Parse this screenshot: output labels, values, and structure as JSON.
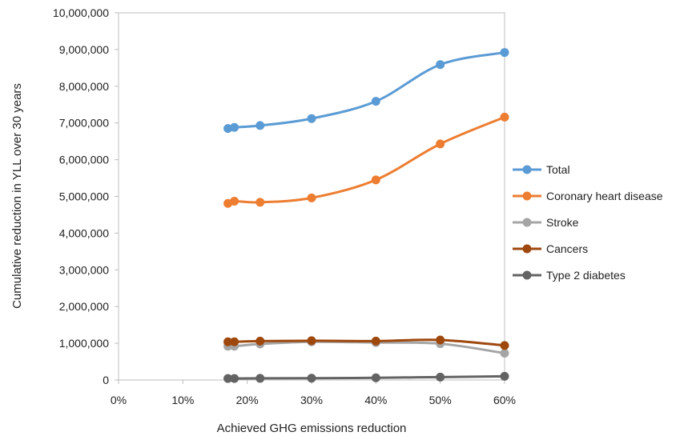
{
  "chart_data": {
    "type": "line",
    "title": "",
    "xlabel": "Achieved GHG emissions reduction",
    "ylabel": "Cumulative reduction in YLL over 30 years",
    "x_ticks": [
      "0%",
      "10%",
      "20%",
      "30%",
      "40%",
      "50%",
      "60%"
    ],
    "y_ticks": [
      "0",
      "1,000,000",
      "2,000,000",
      "3,000,000",
      "4,000,000",
      "5,000,000",
      "6,000,000",
      "7,000,000",
      "8,000,000",
      "9,000,000",
      "10,000,000"
    ],
    "xlim": [
      0,
      60
    ],
    "ylim": [
      0,
      10000000
    ],
    "x": [
      17,
      18,
      22,
      30,
      40,
      50,
      60
    ],
    "grid": false,
    "legend_position": "right",
    "series": [
      {
        "name": "Total",
        "color": "#5B9BD5",
        "values": [
          6850000,
          6880000,
          6930000,
          7120000,
          7590000,
          8590000,
          8920000
        ]
      },
      {
        "name": "Coronary heart disease",
        "color": "#ED7D31",
        "values": [
          4810000,
          4870000,
          4840000,
          4960000,
          5450000,
          6430000,
          7160000
        ]
      },
      {
        "name": "Stroke",
        "color": "#A5A5A5",
        "values": [
          920000,
          920000,
          980000,
          1040000,
          1020000,
          990000,
          730000
        ]
      },
      {
        "name": "Cancers",
        "color": "#9E480E",
        "values": [
          1040000,
          1040000,
          1060000,
          1070000,
          1060000,
          1090000,
          940000
        ]
      },
      {
        "name": "Type 2 diabetes",
        "color": "#636363",
        "values": [
          40000,
          40000,
          45000,
          50000,
          60000,
          80000,
          100000
        ]
      }
    ]
  }
}
